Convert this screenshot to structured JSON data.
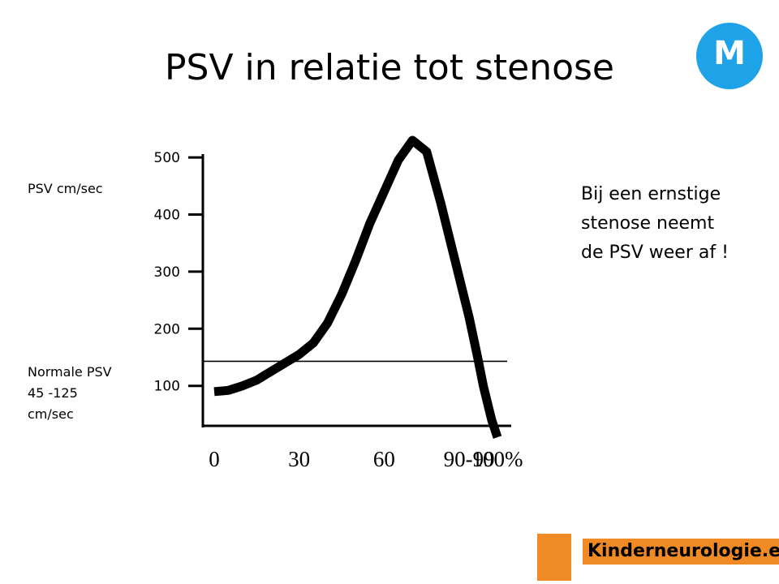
{
  "slide": {
    "title": "PSV in relatie tot stenose",
    "badge": "M",
    "y_unit_label": "PSV cm/sec",
    "normal_label": [
      "Normale PSV",
      "45 -125",
      "cm/sec"
    ],
    "note": "Bij een ernstige\nstenose neemt\nde PSV weer af !",
    "logo_text": "Kinderneurologie.eu"
  },
  "colors": {
    "badge": "#1fa3e8",
    "logo_bg": "#f08a24",
    "curve": "#000000"
  },
  "chart_data": {
    "type": "line",
    "title": "PSV in relatie tot stenose",
    "ylabel": "PSV cm/sec",
    "x_tick_labels": [
      "0",
      "30",
      "60",
      "90-99",
      "100%"
    ],
    "x_tick_values": [
      0,
      30,
      60,
      90,
      100
    ],
    "y_tick_values": [
      100,
      200,
      300,
      400,
      500
    ],
    "xlim": [
      -4,
      102
    ],
    "ylim": [
      30,
      520
    ],
    "reference_line": {
      "y": 143,
      "note": "Normale PSV"
    },
    "series": [
      {
        "x": [
          0,
          5,
          10,
          15,
          20,
          25,
          30,
          35,
          40,
          45,
          50,
          55,
          60,
          65,
          70,
          75,
          80,
          85,
          90,
          93,
          95,
          97,
          98,
          99,
          100
        ],
        "y": [
          90,
          92,
          100,
          110,
          125,
          140,
          155,
          175,
          210,
          260,
          320,
          385,
          440,
          495,
          530,
          510,
          420,
          320,
          220,
          150,
          100,
          60,
          40,
          25,
          10
        ]
      }
    ]
  }
}
